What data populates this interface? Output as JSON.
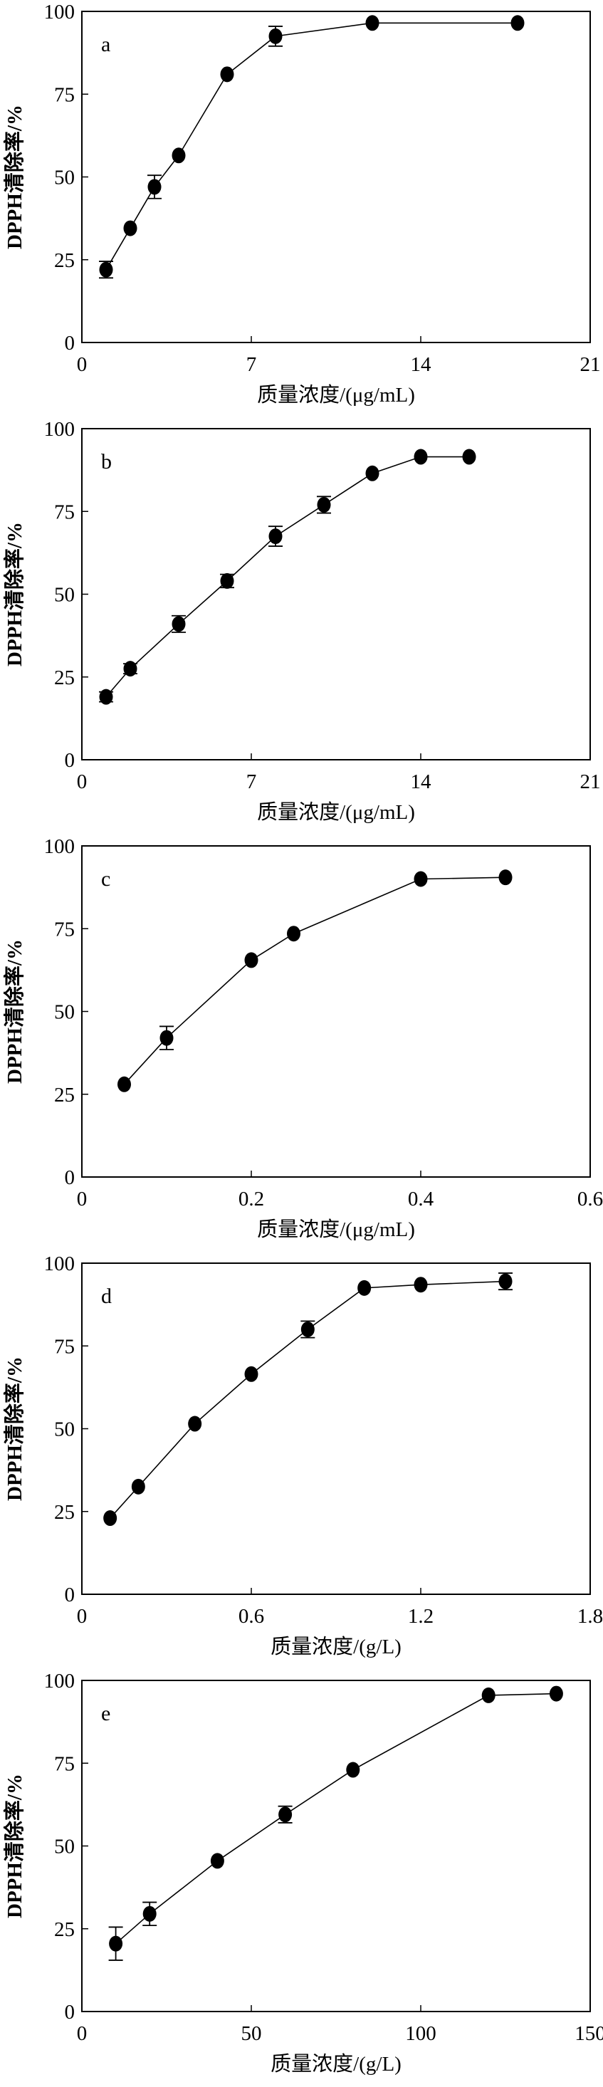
{
  "chart_data": [
    {
      "type": "line",
      "panel_label": "a",
      "xlabel": "质量浓度/(μg/mL)",
      "ylabel": "DPPH清除率/%",
      "xlim": [
        0,
        21
      ],
      "ylim": [
        0,
        100
      ],
      "xticks": [
        0,
        7,
        14,
        21
      ],
      "yticks": [
        0,
        25,
        50,
        75,
        100
      ],
      "x": [
        1,
        2,
        3,
        4,
        6,
        8,
        12,
        18
      ],
      "y": [
        22,
        34.5,
        47,
        56.5,
        81,
        92.5,
        96.5,
        96.5
      ],
      "err": [
        2.5,
        0,
        3.5,
        0,
        0,
        3,
        0,
        0
      ]
    },
    {
      "type": "line",
      "panel_label": "b",
      "xlabel": "质量浓度/(μg/mL)",
      "ylabel": "DPPH清除率/%",
      "xlim": [
        0,
        21
      ],
      "ylim": [
        0,
        100
      ],
      "xticks": [
        0,
        7,
        14,
        21
      ],
      "yticks": [
        0,
        25,
        50,
        75,
        100
      ],
      "x": [
        1,
        2,
        4,
        6,
        8,
        10,
        12,
        14,
        16
      ],
      "y": [
        19,
        27.5,
        41,
        54,
        67.5,
        77,
        86.5,
        91.5,
        91.5
      ],
      "err": [
        1.5,
        1.5,
        2.5,
        2,
        3,
        2.5,
        0,
        0,
        0
      ]
    },
    {
      "type": "line",
      "panel_label": "c",
      "xlabel": "质量浓度/(μg/mL)",
      "ylabel": "DPPH清除率/%",
      "xlim": [
        0,
        0.6
      ],
      "ylim": [
        0,
        100
      ],
      "xticks": [
        0,
        0.2,
        0.4,
        0.6
      ],
      "yticks": [
        0,
        25,
        50,
        75,
        100
      ],
      "x": [
        0.05,
        0.1,
        0.2,
        0.25,
        0.4,
        0.5
      ],
      "y": [
        28,
        42,
        65.5,
        73.5,
        90,
        90.5
      ],
      "err": [
        0,
        3.5,
        0,
        0,
        0,
        0
      ]
    },
    {
      "type": "line",
      "panel_label": "d",
      "xlabel": "质量浓度/(g/L)",
      "ylabel": "DPPH清除率/%",
      "xlim": [
        0,
        1.8
      ],
      "ylim": [
        0,
        100
      ],
      "xticks": [
        0,
        0.6,
        1.2,
        1.8
      ],
      "yticks": [
        0,
        25,
        50,
        75,
        100
      ],
      "x": [
        0.1,
        0.2,
        0.4,
        0.6,
        0.8,
        1.0,
        1.2,
        1.5
      ],
      "y": [
        23,
        32.5,
        51.5,
        66.5,
        80,
        92.5,
        93.5,
        94.5
      ],
      "err": [
        0,
        0,
        0,
        0,
        2.5,
        0,
        0,
        2.5
      ]
    },
    {
      "type": "line",
      "panel_label": "e",
      "xlabel": "质量浓度/(g/L)",
      "ylabel": "DPPH清除率/%",
      "xlim": [
        0,
        150
      ],
      "ylim": [
        0,
        100
      ],
      "xticks": [
        0,
        50,
        100,
        150
      ],
      "yticks": [
        0,
        25,
        50,
        75,
        100
      ],
      "x": [
        10,
        20,
        40,
        60,
        80,
        120,
        140
      ],
      "y": [
        20.5,
        29.5,
        45.5,
        59.5,
        73,
        95.5,
        96
      ],
      "err": [
        5,
        3.5,
        0,
        2.5,
        0,
        0,
        0
      ]
    }
  ]
}
